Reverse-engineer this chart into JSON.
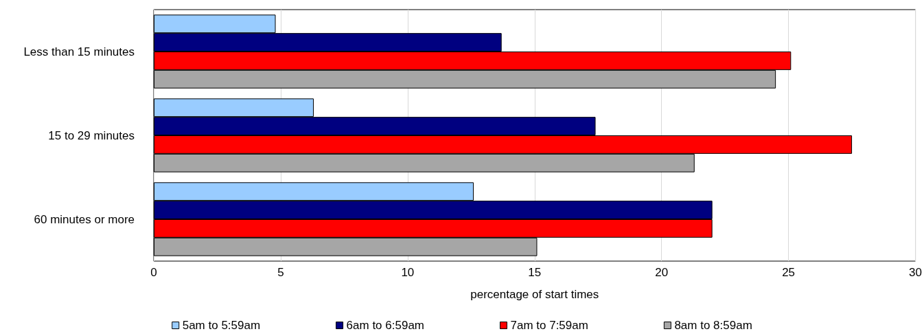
{
  "chart_data": {
    "type": "bar",
    "orientation": "horizontal",
    "xlabel": "percentage of start times",
    "categories": [
      "Less than 15 minutes",
      "15 to 29 minutes",
      "60 minutes or more"
    ],
    "series": [
      {
        "name": "5am to 5:59am",
        "color": "#99ccff",
        "values": [
          4.8,
          6.3,
          12.6
        ]
      },
      {
        "name": "6am to 6:59am",
        "color": "#000080",
        "values": [
          13.7,
          17.4,
          22.0
        ]
      },
      {
        "name": "7am to 7:59am",
        "color": "#ff0000",
        "values": [
          25.1,
          27.5,
          22.0
        ]
      },
      {
        "name": "8am to 8:59am",
        "color": "#a6a6a6",
        "values": [
          24.5,
          21.3,
          15.1
        ]
      }
    ],
    "xlim": [
      0,
      30
    ],
    "xticks": [
      0,
      5,
      10,
      15,
      20,
      25,
      30
    ],
    "grid": "x",
    "legend": "bottom"
  }
}
